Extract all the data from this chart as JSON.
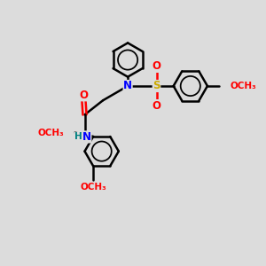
{
  "bg_color": "#dcdcdc",
  "bond_color": "#000000",
  "bond_width": 1.8,
  "atom_colors": {
    "N": "#0000ff",
    "O": "#ff0000",
    "S": "#ccaa00",
    "H": "#008080",
    "C": "#000000"
  },
  "font_size": 8.5,
  "fig_width": 3.0,
  "fig_height": 3.0,
  "dpi": 100,
  "xlim": [
    0,
    10
  ],
  "ylim": [
    0,
    10
  ]
}
